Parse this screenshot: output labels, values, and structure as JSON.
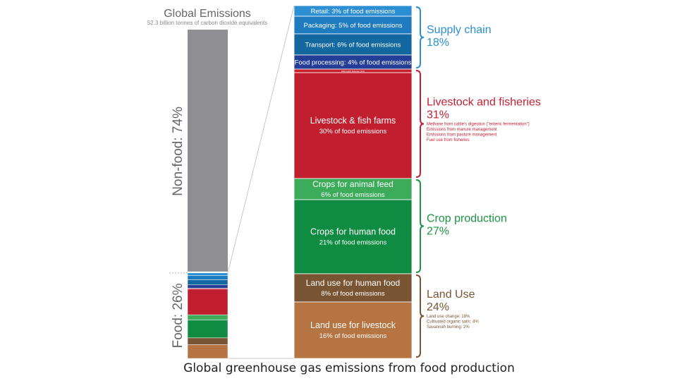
{
  "chart_data": {
    "type": "bar",
    "left_bar": {
      "title": "Global Emissions",
      "subtitle": "52.3 billion tonnes of carbon dioxide equivalents",
      "label_non_food": "Non-food: 74%",
      "label_food": "Food: 26%",
      "non_food_share": 74,
      "food_share": 26,
      "non_food_color": "#8f8f93"
    },
    "segments": [
      {
        "label": "Retail: 3% of food emissions",
        "sub": "",
        "value": 3,
        "color": "#2c8fd4"
      },
      {
        "label": "Packaging: 5% of food emissions",
        "sub": "",
        "value": 5,
        "color": "#1f7bc0"
      },
      {
        "label": "Transport: 6% of food emissions",
        "sub": "",
        "value": 6,
        "color": "#13689f"
      },
      {
        "label": "Food processing: 4% of food emissions",
        "sub": "",
        "value": 4,
        "color": "#243d96"
      },
      {
        "label": "Wild-catch fisheries (1%)",
        "sub": "",
        "value": 1,
        "color": "#c8202f"
      },
      {
        "label": "Livestock & fish farms",
        "sub": "30% of food emissions",
        "value": 30,
        "color": "#c11f2f"
      },
      {
        "label": "Crops for animal feed",
        "sub": "6% of food emissions",
        "value": 6,
        "color": "#3cac5b"
      },
      {
        "label": "Crops for human food",
        "sub": "21% of food emissions",
        "value": 21,
        "color": "#108c42"
      },
      {
        "label": "Land use for human food",
        "sub": "8% of food emissions",
        "value": 8,
        "color": "#7a5533"
      },
      {
        "label": "Land use for livestock",
        "sub": "16% of food emissions",
        "value": 16,
        "color": "#b67443"
      }
    ],
    "groups": [
      {
        "name": "Supply chain",
        "pct": "18%",
        "color": "#2b8fd0",
        "notes": []
      },
      {
        "name": "Livestock and fisheries",
        "pct": "31%",
        "color": "#c42033",
        "notes": [
          "Methane from cattle's digestion (\"enteric fermentation\")",
          "Emissions from manure management",
          "Emissions from pasture management",
          "Fuel use from fisheries"
        ]
      },
      {
        "name": "Crop production",
        "pct": "27%",
        "color": "#1b9444",
        "notes": []
      },
      {
        "name": "Land Use",
        "pct": "24%",
        "color": "#7a5533",
        "notes": [
          "Land use change: 18%",
          "Cultivated organic soils: 4%",
          "Savannah burning: 2%"
        ]
      }
    ]
  },
  "caption": "Global greenhouse gas emissions from food production"
}
